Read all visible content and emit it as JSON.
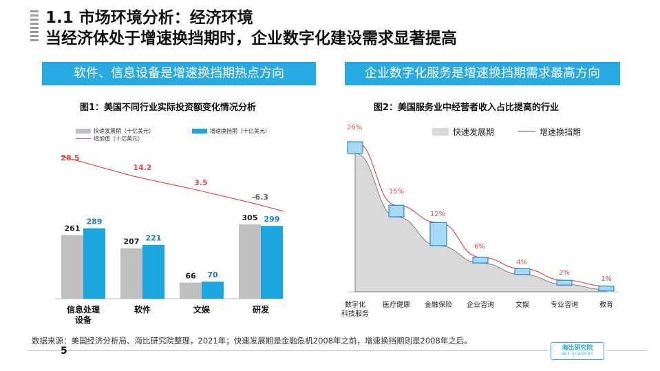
{
  "header": {
    "title": "1.1 市场环境分析：经济环境",
    "subtitle": "当经济体处于增速换挡期时，企业数字化建设需求显著提高"
  },
  "banners": {
    "left": "软件、信息设备是增速换挡期热点方向",
    "right": "企业数字化服务是增速换挡期需求最高方向"
  },
  "figures": {
    "left_title": "图1：美国不同行业实际投资额变化情况分析",
    "right_title": "图2：美国服务业中经营者收入占比提高的行业"
  },
  "chart_data": [
    {
      "type": "bar",
      "title": "图1：美国不同行业实际投资额变化情况分析",
      "categories": [
        "信息处理\n设备",
        "软件",
        "文娱",
        "研发"
      ],
      "series": [
        {
          "name": "快速发展期（十亿美元）",
          "type": "bar",
          "color": "#bfbfbf",
          "values": [
            261,
            207,
            66,
            305
          ]
        },
        {
          "name": "增速换挡期（十亿美元）",
          "type": "bar",
          "color": "#1aa7e0",
          "values": [
            289,
            221,
            70,
            299
          ]
        },
        {
          "name": "增加值（十亿美元）",
          "type": "line",
          "color": "#e84a4a",
          "values": [
            28.5,
            14.2,
            3.5,
            -6.3
          ]
        }
      ],
      "ylim": [
        0,
        330
      ],
      "legend": "top-left"
    },
    {
      "type": "area",
      "title": "图2：美国服务业中经营者收入占比提高的行业",
      "categories": [
        "数字化\n科技服务",
        "医疗健康",
        "金融保险",
        "企业咨询",
        "文娱",
        "专业咨询",
        "教育"
      ],
      "series": [
        {
          "name": "快速发展期",
          "type": "area",
          "color": "#d9d9d9",
          "values": [
            24,
            13,
            8,
            5,
            3,
            1.3,
            0.4
          ]
        },
        {
          "name": "增速换挡期",
          "type": "line",
          "color": "#e84a4a",
          "values": [
            26,
            15,
            12,
            6,
            4,
            2,
            1
          ]
        }
      ],
      "data_labels": [
        "26%",
        "15%",
        "12%",
        "6%",
        "4%",
        "2%",
        "1%"
      ],
      "ylim": [
        0,
        28
      ],
      "legend": "top"
    }
  ],
  "source": "数据来源：美国经济分析局、海比研究院整理，2021年；快速发展期是金融危机2008年之前，增速换挡期则是2008年之后。",
  "page_number": "5",
  "logo": {
    "name": "海比研究院",
    "sub": "HBP ACADEMY"
  }
}
